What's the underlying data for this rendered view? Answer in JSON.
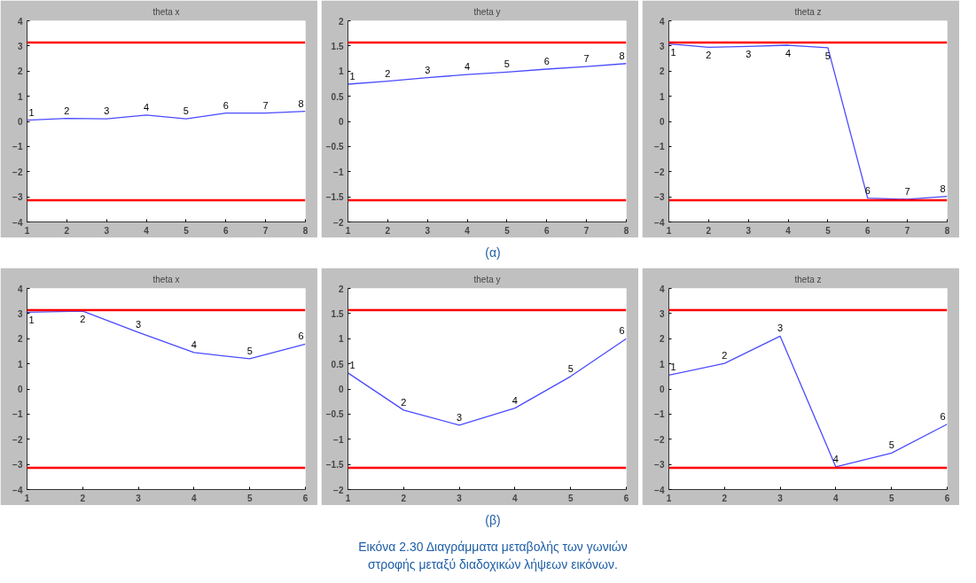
{
  "chart_data": [
    {
      "type": "line",
      "title": "theta x",
      "x": [
        1,
        2,
        3,
        4,
        5,
        6,
        7,
        8
      ],
      "series": [
        {
          "color": "#4a4aff",
          "values": [
            0.05,
            0.12,
            0.1,
            0.25,
            0.1,
            0.33,
            0.33,
            0.4
          ]
        }
      ],
      "xlim": [
        1,
        8
      ],
      "xticks": [
        1,
        2,
        3,
        4,
        5,
        6,
        7,
        8
      ],
      "ylim": [
        -4,
        4
      ],
      "yticks": [
        -4,
        -3,
        -2,
        -1,
        0,
        1,
        2,
        3,
        4
      ],
      "ref_lines": [
        {
          "axis": "y",
          "value": 3.14,
          "color": "#ff0000"
        },
        {
          "axis": "y",
          "value": -3.14,
          "color": "#ff0000"
        }
      ],
      "annotations": [
        {
          "text": "1",
          "x": 1,
          "y": 0.05
        },
        {
          "text": "2",
          "x": 2,
          "y": 0.12
        },
        {
          "text": "3",
          "x": 3,
          "y": 0.1
        },
        {
          "text": "4",
          "x": 4,
          "y": 0.25
        },
        {
          "text": "5",
          "x": 5,
          "y": 0.1
        },
        {
          "text": "6",
          "x": 6,
          "y": 0.33
        },
        {
          "text": "7",
          "x": 7,
          "y": 0.33
        },
        {
          "text": "8",
          "x": 8,
          "y": 0.4
        }
      ]
    },
    {
      "type": "line",
      "title": "theta y",
      "x": [
        1,
        2,
        3,
        4,
        5,
        6,
        7,
        8
      ],
      "series": [
        {
          "color": "#4a4aff",
          "values": [
            0.74,
            0.8,
            0.87,
            0.93,
            0.98,
            1.04,
            1.09,
            1.15
          ]
        }
      ],
      "xlim": [
        1,
        8
      ],
      "xticks": [
        1,
        2,
        3,
        4,
        5,
        6,
        7,
        8
      ],
      "ylim": [
        -2,
        2
      ],
      "yticks": [
        -2,
        -1.5,
        -1,
        -0.5,
        0,
        0.5,
        1,
        1.5,
        2
      ],
      "ref_lines": [
        {
          "axis": "y",
          "value": 1.57,
          "color": "#ff0000"
        },
        {
          "axis": "y",
          "value": -1.57,
          "color": "#ff0000"
        }
      ],
      "annotations": [
        {
          "text": "1",
          "x": 1,
          "y": 0.74
        },
        {
          "text": "2",
          "x": 2,
          "y": 0.8
        },
        {
          "text": "3",
          "x": 3,
          "y": 0.87
        },
        {
          "text": "4",
          "x": 4,
          "y": 0.93
        },
        {
          "text": "5",
          "x": 5,
          "y": 0.98
        },
        {
          "text": "6",
          "x": 6,
          "y": 1.04
        },
        {
          "text": "7",
          "x": 7,
          "y": 1.09
        },
        {
          "text": "8",
          "x": 8,
          "y": 1.15
        },
        "(α)"
      ]
    },
    {
      "type": "line",
      "title": "theta z",
      "x": [
        1,
        2,
        3,
        4,
        5,
        6,
        7,
        8
      ],
      "series": [
        {
          "color": "#4a4aff",
          "values": [
            3.08,
            2.95,
            2.98,
            3.03,
            2.93,
            -3.05,
            -3.1,
            -2.98
          ]
        }
      ],
      "xlim": [
        1,
        8
      ],
      "xticks": [
        1,
        2,
        3,
        4,
        5,
        6,
        7,
        8
      ],
      "ylim": [
        -4,
        4
      ],
      "yticks": [
        -4,
        -3,
        -2,
        -1,
        0,
        1,
        2,
        3,
        4
      ],
      "ref_lines": [
        {
          "axis": "y",
          "value": 3.14,
          "color": "#ff0000"
        },
        {
          "axis": "y",
          "value": -3.14,
          "color": "#ff0000"
        }
      ],
      "annotations": [
        {
          "text": "1",
          "x": 1,
          "y": 3.08
        },
        {
          "text": "2",
          "x": 2,
          "y": 2.95
        },
        {
          "text": "3",
          "x": 3,
          "y": 2.98
        },
        {
          "text": "4",
          "x": 4,
          "y": 3.03
        },
        {
          "text": "5",
          "x": 5,
          "y": 2.93
        },
        {
          "text": "6",
          "x": 6,
          "y": -3.05
        },
        {
          "text": "7",
          "x": 7,
          "y": -3.1
        },
        {
          "text": "8",
          "x": 8,
          "y": -2.98
        }
      ]
    },
    {
      "type": "line",
      "title": "theta x",
      "x": [
        1,
        2,
        3,
        4,
        5,
        6
      ],
      "series": [
        {
          "color": "#4a4aff",
          "values": [
            3.05,
            3.1,
            2.25,
            1.45,
            1.2,
            1.78
          ]
        }
      ],
      "xlim": [
        1,
        6
      ],
      "xticks": [
        1,
        2,
        3,
        4,
        5,
        6
      ],
      "ylim": [
        -4,
        4
      ],
      "yticks": [
        -4,
        -3,
        -2,
        -1,
        0,
        1,
        2,
        3,
        4
      ],
      "ref_lines": [
        {
          "axis": "y",
          "value": 3.14,
          "color": "#ff0000"
        },
        {
          "axis": "y",
          "value": -3.14,
          "color": "#ff0000"
        }
      ],
      "annotations": [
        {
          "text": "1",
          "x": 1,
          "y": 3.05
        },
        {
          "text": "2",
          "x": 2,
          "y": 3.1
        },
        {
          "text": "3",
          "x": 3,
          "y": 2.25
        },
        {
          "text": "4",
          "x": 4,
          "y": 1.45
        },
        {
          "text": "5",
          "x": 5,
          "y": 1.2
        },
        {
          "text": "6",
          "x": 6,
          "y": 1.78
        }
      ]
    },
    {
      "type": "line",
      "title": "theta y",
      "x": [
        1,
        2,
        3,
        4,
        5,
        6
      ],
      "series": [
        {
          "color": "#4a4aff",
          "values": [
            0.32,
            -0.42,
            -0.72,
            -0.38,
            0.25,
            1.0
          ]
        }
      ],
      "xlim": [
        1,
        6
      ],
      "xticks": [
        1,
        2,
        3,
        4,
        5,
        6
      ],
      "ylim": [
        -2,
        2
      ],
      "yticks": [
        -2,
        -1.5,
        -1,
        -0.5,
        0,
        0.5,
        1,
        1.5,
        2
      ],
      "ref_lines": [
        {
          "axis": "y",
          "value": 1.57,
          "color": "#ff0000"
        },
        {
          "axis": "y",
          "value": -1.57,
          "color": "#ff0000"
        }
      ],
      "annotations": [
        {
          "text": "1",
          "x": 1,
          "y": 0.32
        },
        {
          "text": "2",
          "x": 2,
          "y": -0.42
        },
        {
          "text": "3",
          "x": 3,
          "y": -0.72
        },
        {
          "text": "4",
          "x": 4,
          "y": -0.38
        },
        {
          "text": "5",
          "x": 5,
          "y": 0.25
        },
        {
          "text": "6",
          "x": 6,
          "y": 1.0
        },
        "(β)",
        "Εικόνα 2.30 Διαγράμματα μεταβολής των γωνιών στροφής μεταξύ διαδοχικών λήψεων εικόνων."
      ]
    },
    {
      "type": "line",
      "title": "theta z",
      "x": [
        1,
        2,
        3,
        4,
        5,
        6
      ],
      "series": [
        {
          "color": "#4a4aff",
          "values": [
            0.55,
            1.02,
            2.1,
            -3.1,
            -2.55,
            -1.4
          ]
        }
      ],
      "xlim": [
        1,
        6
      ],
      "xticks": [
        1,
        2,
        3,
        4,
        5,
        6
      ],
      "ylim": [
        -4,
        4
      ],
      "yticks": [
        -4,
        -3,
        -2,
        -1,
        0,
        1,
        2,
        3,
        4
      ],
      "ref_lines": [
        {
          "axis": "y",
          "value": 3.14,
          "color": "#ff0000"
        },
        {
          "axis": "y",
          "value": -3.14,
          "color": "#ff0000"
        }
      ],
      "annotations": [
        {
          "text": "1",
          "x": 1,
          "y": 0.55
        },
        {
          "text": "2",
          "x": 2,
          "y": 1.02
        },
        {
          "text": "3",
          "x": 3,
          "y": 2.1
        },
        {
          "text": "4",
          "x": 4,
          "y": -3.1
        },
        {
          "text": "5",
          "x": 5,
          "y": -2.55
        },
        {
          "text": "6",
          "x": 6,
          "y": -1.4
        }
      ]
    }
  ]
}
